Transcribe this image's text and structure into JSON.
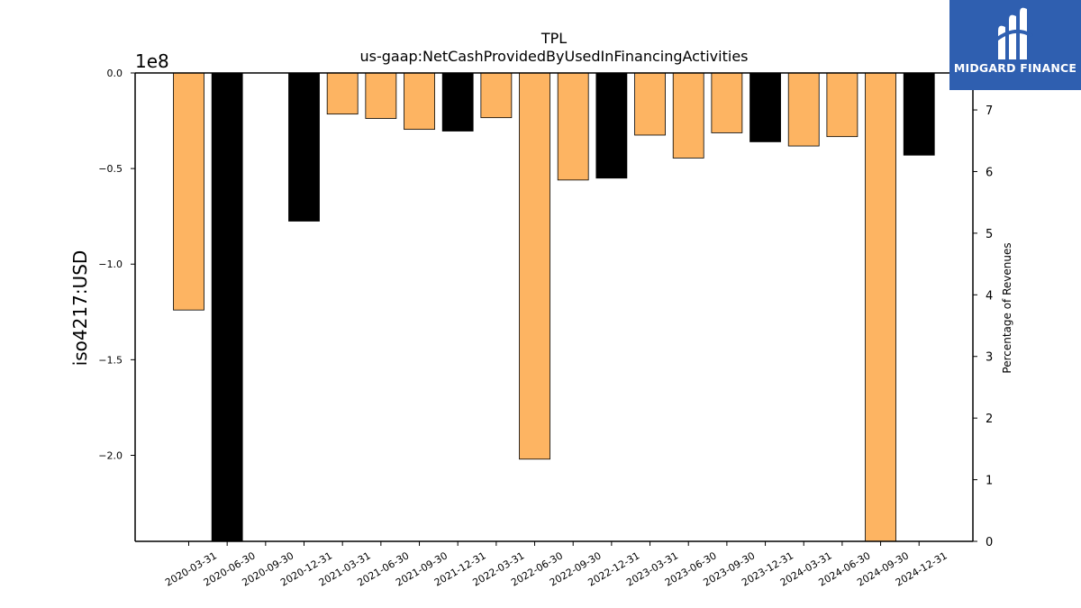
{
  "brand": {
    "name": "MIDGARD FINANCE",
    "logo_icon": "midgard-logo-icon",
    "color": "#2f5fb0"
  },
  "chart_data": {
    "type": "bar",
    "title": "TPL",
    "subtitle": "us-gaap:NetCashProvidedByUsedInFinancingActivities",
    "ylabel": "iso4217:USD",
    "y_offset_label": "1e8",
    "y2label": "Percentage of Revenues",
    "ylim": [
      -245000000,
      0
    ],
    "yticks": [
      0,
      -50000000,
      -100000000,
      -150000000,
      -200000000
    ],
    "ytick_labels": [
      "0.0",
      "−0.5",
      "−1.0",
      "−1.5",
      "−2.0"
    ],
    "y2lim": [
      0,
      7.6
    ],
    "y2ticks": [
      "0",
      "1",
      "2",
      "3",
      "4",
      "5",
      "6",
      "7"
    ],
    "categories": [
      "2020-03-31",
      "2020-06-30",
      "2020-09-30",
      "2020-12-31",
      "2021-03-31",
      "2021-06-30",
      "2021-09-30",
      "2021-12-31",
      "2022-03-31",
      "2022-06-30",
      "2022-09-30",
      "2022-12-31",
      "2023-03-31",
      "2023-06-30",
      "2023-09-30",
      "2023-12-31",
      "2024-03-31",
      "2024-06-30",
      "2024-09-30",
      "2024-12-31"
    ],
    "values": [
      -124000000,
      -245000000,
      0,
      -77500000,
      -21500000,
      -23800000,
      -29500000,
      -30400000,
      -23400000,
      -202000000,
      -56000000,
      -55000000,
      -32500000,
      -44500000,
      -31300000,
      -36000000,
      -38200000,
      -33300000,
      -245000000,
      -43000000
    ],
    "colors": [
      "#fdb462",
      "#000000",
      "#000000",
      "#000000",
      "#fdb462",
      "#fdb462",
      "#fdb462",
      "#000000",
      "#fdb462",
      "#fdb462",
      "#fdb462",
      "#000000",
      "#fdb462",
      "#fdb462",
      "#fdb462",
      "#000000",
      "#fdb462",
      "#fdb462",
      "#fdb462",
      "#000000"
    ],
    "grid": false
  }
}
